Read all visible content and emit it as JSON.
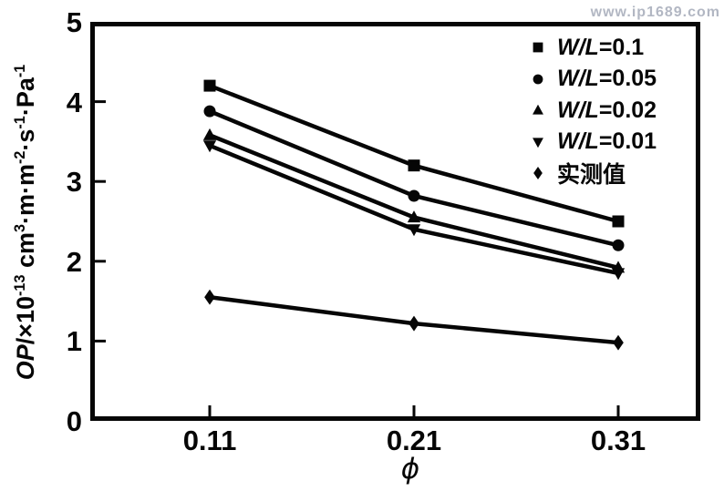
{
  "watermark": "www.ip1689.com",
  "colors": {
    "line": "#060606",
    "background": "#ffffff",
    "watermark": "#b2b7c3"
  },
  "chart_data": {
    "type": "line",
    "x": [
      0.11,
      0.21,
      0.31
    ],
    "xtick_labels": [
      "0.11",
      "0.21",
      "0.31"
    ],
    "xlabel": "ϕ",
    "ylabel": "OP/×10⁻¹³ cm³·m·m⁻²·s⁻¹·Pa⁻¹",
    "ylabel_parts": [
      {
        "t": "OP",
        "style": "italic"
      },
      {
        "t": "/×10"
      },
      {
        "t": "-13",
        "style": "sup"
      },
      {
        "t": " cm"
      },
      {
        "t": "3",
        "style": "sup"
      },
      {
        "t": "·m·m"
      },
      {
        "t": "-2",
        "style": "sup"
      },
      {
        "t": "·s"
      },
      {
        "t": "-1",
        "style": "sup"
      },
      {
        "t": "·Pa"
      },
      {
        "t": "-1",
        "style": "sup"
      }
    ],
    "ylim": [
      0,
      5
    ],
    "yticks": [
      0,
      1,
      2,
      3,
      4,
      5
    ],
    "grid": false,
    "legend_position": "top-right",
    "series": [
      {
        "name": "W/L=0.1",
        "marker": "square",
        "values": [
          4.2,
          3.2,
          2.5
        ]
      },
      {
        "name": "W/L=0.05",
        "marker": "circle",
        "values": [
          3.88,
          2.82,
          2.2
        ]
      },
      {
        "name": "W/L=0.02",
        "marker": "triangle-up",
        "values": [
          3.58,
          2.55,
          1.92
        ]
      },
      {
        "name": "W/L=0.01",
        "marker": "triangle-down",
        "values": [
          3.45,
          2.4,
          1.85
        ]
      },
      {
        "name": "实测值",
        "marker": "diamond",
        "values": [
          1.55,
          1.22,
          0.98
        ]
      }
    ]
  }
}
